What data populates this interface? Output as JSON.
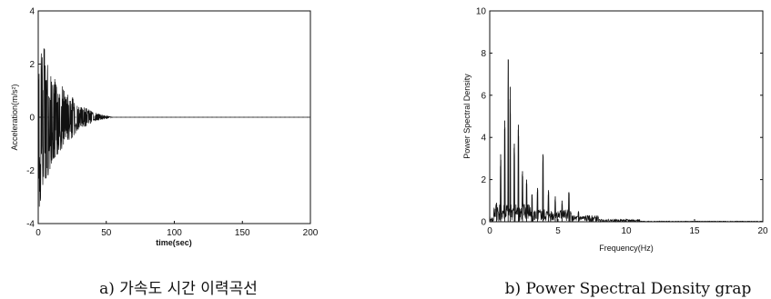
{
  "chart_data": [
    {
      "type": "line",
      "title": "",
      "xlabel": "time(sec)",
      "ylabel": "Acceleration(m/s²)",
      "xlim": [
        0,
        200
      ],
      "ylim": [
        -4,
        4
      ],
      "x_ticks": [
        "0",
        "50",
        "100",
        "150",
        "200"
      ],
      "y_ticks": [
        "4",
        "2",
        "0",
        "-2",
        "-4"
      ],
      "grid": false,
      "envelope": {
        "t": [
          0,
          2,
          5,
          8,
          12,
          16,
          20,
          25,
          30,
          35,
          40,
          45,
          50,
          55
        ],
        "amplitude": [
          3.6,
          3.4,
          2.5,
          2.1,
          1.6,
          1.3,
          1.0,
          0.8,
          0.5,
          0.35,
          0.22,
          0.12,
          0.06,
          0.0
        ]
      },
      "caption": "a) 가속도 시간 이력곡선"
    },
    {
      "type": "line",
      "title": "",
      "xlabel": "Frequency(Hz)",
      "ylabel": "Power Spectral Density",
      "xlim": [
        0,
        20
      ],
      "ylim": [
        0,
        10
      ],
      "x_ticks": [
        "0",
        "5",
        "10",
        "15",
        "20"
      ],
      "y_ticks": [
        "10",
        "8",
        "6",
        "4",
        "2",
        "0"
      ],
      "grid": false,
      "peaks": {
        "frequency_hz": [
          0.5,
          0.8,
          1.1,
          1.35,
          1.5,
          1.8,
          2.1,
          2.4,
          2.7,
          3.1,
          3.5,
          3.9,
          4.3,
          4.8,
          5.3,
          5.8,
          6.5,
          7.3
        ],
        "psd": [
          0.9,
          3.2,
          4.8,
          7.7,
          6.4,
          3.7,
          4.6,
          2.4,
          2.0,
          1.3,
          1.6,
          3.2,
          1.5,
          1.2,
          1.0,
          1.4,
          0.5,
          0.3
        ]
      },
      "caption": "b) Power Spectral Density grap"
    }
  ]
}
